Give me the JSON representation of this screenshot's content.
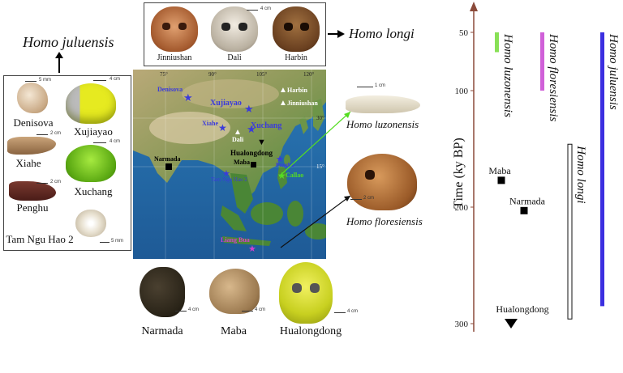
{
  "species": {
    "juluensis": "Homo juluensis",
    "longi": "Homo longi",
    "luzonensis": "Homo luzonensis",
    "floresiensis": "Homo floresiensis"
  },
  "left_panel": {
    "labels": [
      "Denisova",
      "Xujiayao",
      "Xiahe",
      "Xuchang",
      "Penghu",
      "Tam Ngu Hao 2"
    ],
    "scales": [
      "5 mm",
      "4 cm",
      "2 cm",
      "4 cm",
      "2 cm",
      "5 mm"
    ]
  },
  "top_panel": {
    "labels": [
      "Jinniushan",
      "Dali",
      "Harbin"
    ],
    "scale": "4 cm"
  },
  "bottom_panel": {
    "labels": [
      "Narmada",
      "Maba",
      "Hualongdong"
    ],
    "scales": [
      "4 cm",
      "4 cm",
      "4 cm"
    ]
  },
  "right_fossils": {
    "luzon_scale": "1 cm",
    "flores_scale": "2 cm"
  },
  "map": {
    "site_labels": [
      "Denisova",
      "Xujiayao",
      "Xiahe",
      "Xuchang",
      "Harbin",
      "Jinniushan",
      "Dali",
      "Hualongdong",
      "Narmada",
      "Maba",
      "Penghu",
      "Tam Ngu Hao 2",
      "Callao",
      "Liang Bua"
    ],
    "longitude_ticks": [
      "75°",
      "90°",
      "105°",
      "120°"
    ],
    "latitude_ticks": [
      "30°",
      "15°"
    ],
    "colors": {
      "denisovan_star": "#3b3bdb",
      "luzon_marker": "#55dd22",
      "flores_marker": "#d23fd0",
      "harbin_triangle": "#ffffff",
      "black_marker": "#000000"
    }
  },
  "timeline": {
    "axis_label": "Time (ky BP)",
    "ticks": [
      50,
      100,
      200,
      300
    ],
    "bars": [
      {
        "name": "Homo luzonensis",
        "start": 50,
        "end": 67,
        "color": "#88e056"
      },
      {
        "name": "Homo floresiensis",
        "start": 50,
        "end": 100,
        "color": "#d060d8"
      },
      {
        "name": "Homo juluensis",
        "start": 50,
        "end": 285,
        "color": "#3b2fe0"
      },
      {
        "name": "Homo longi",
        "start": 146,
        "end": 296,
        "color": "#ffffff",
        "outlined": true
      }
    ],
    "markers": [
      {
        "name": "Maba",
        "time": 177,
        "shape": "square"
      },
      {
        "name": "Narmada",
        "time": 203,
        "shape": "square"
      },
      {
        "name": "Hualongdong",
        "time": 300,
        "shape": "triangle"
      }
    ]
  }
}
